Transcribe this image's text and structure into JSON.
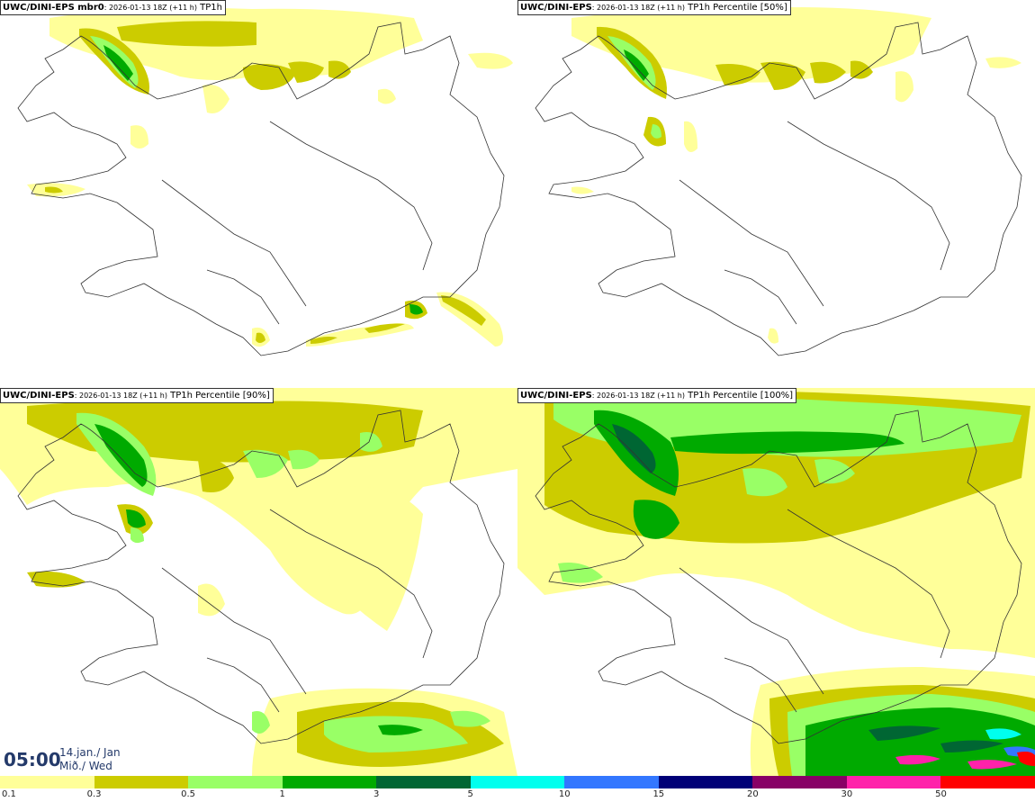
{
  "panels": [
    {
      "model": "UWC/DINI-EPS mbr0",
      "date": ": 2026-01-13 18Z (+11 h)",
      "field": " TP1h"
    },
    {
      "model": "UWC/DINI-EPS",
      "date": ": 2026-01-13 18Z (+11 h)",
      "field": " TP1h Percentile [50%]"
    },
    {
      "model": "UWC/DINI-EPS",
      "date": ": 2026-01-13 18Z (+11 h)",
      "field": " TP1h Percentile [90%]"
    },
    {
      "model": "UWC/DINI-EPS",
      "date": ": 2026-01-13 18Z (+11 h)",
      "field": " TP1h Percentile [100%]"
    }
  ],
  "time": {
    "hour": "05:00",
    "date_line1": "14.jan./ Jan",
    "date_line2": "Mið./ Wed"
  },
  "legend": {
    "colors": [
      "#ffff99",
      "#cccc00",
      "#99ff66",
      "#00aa00",
      "#006633",
      "#00ffee",
      "#3377ff",
      "#000077",
      "#880066",
      "#ff22aa",
      "#ff0000"
    ],
    "labels": [
      "0.1",
      "0.3",
      "0.5",
      "1",
      "3",
      "5",
      "10",
      "15",
      "20",
      "30",
      "50"
    ]
  },
  "colors": {
    "light_yellow": "#ffff99",
    "olive": "#cccc00",
    "light_green": "#99ff66",
    "green": "#00aa00",
    "dark_green": "#006633",
    "title_blue": "#243a6a"
  }
}
